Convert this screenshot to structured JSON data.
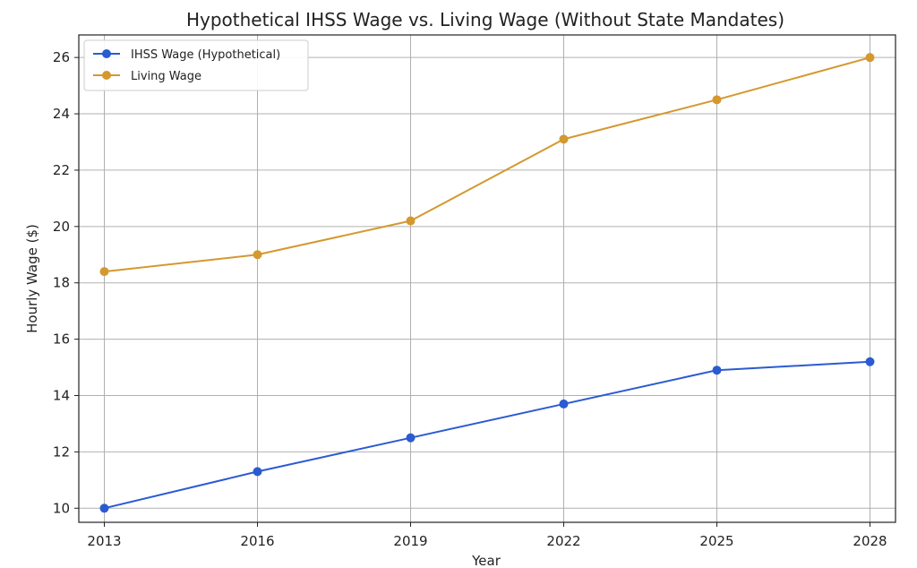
{
  "chart_data": {
    "type": "line",
    "title": "Hypothetical IHSS Wage vs. Living Wage (Without State Mandates)",
    "xlabel": "Year",
    "ylabel": "Hourly Wage ($)",
    "x": [
      2013,
      2016,
      2019,
      2022,
      2025,
      2028
    ],
    "xticks": [
      "2013",
      "2016",
      "2019",
      "2022",
      "2025",
      "2028"
    ],
    "yticks": [
      "10",
      "12",
      "14",
      "16",
      "18",
      "20",
      "22",
      "24",
      "26"
    ],
    "xlim": [
      2012.5,
      2028.5
    ],
    "ylim": [
      9.5,
      26.8
    ],
    "grid": true,
    "legend_position": "top-left",
    "series": [
      {
        "name": "IHSS Wage (Hypothetical)",
        "color": "#2b5bd1",
        "values": [
          10.0,
          11.3,
          12.5,
          13.7,
          14.9,
          15.2
        ]
      },
      {
        "name": "Living Wage",
        "color": "#d4982f",
        "values": [
          18.4,
          19.0,
          20.2,
          23.1,
          24.5,
          26.0
        ]
      }
    ]
  }
}
